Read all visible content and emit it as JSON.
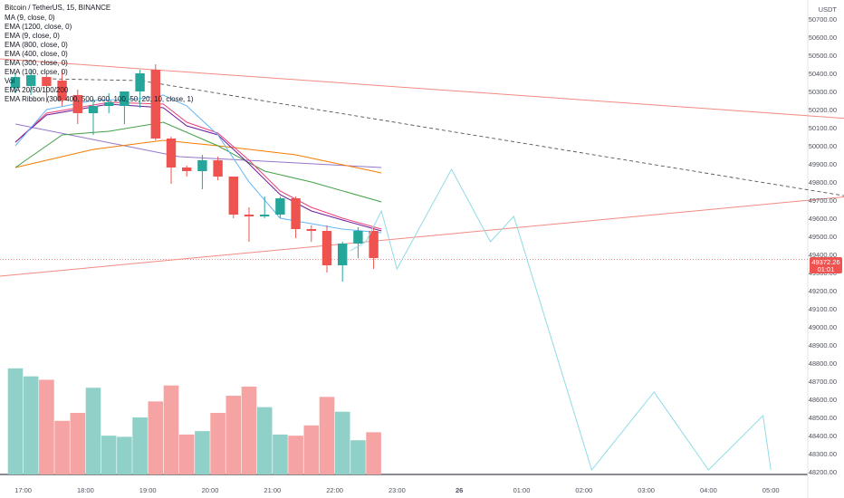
{
  "header": {
    "symbol": "Bitcoin / TetherUS, 15, BINANCE",
    "currency": "USDT"
  },
  "indicators": [
    "MA (9, close, 0)",
    "EMA (1200, close, 0)",
    "EMA (9, close, 0)",
    "EMA (800, close, 0)",
    "EMA (400, close, 0)",
    "EMA (300, close, 0)",
    "EMA (100, close, 0)",
    "Vol",
    "EMA 20/50/100/200",
    "EMA Ribbon (300, 400, 500, 600, 100, 50, 20, 10, close, 1)"
  ],
  "price_tag": {
    "price": "49372.26",
    "countdown": "01:01",
    "color": "#ef5350"
  },
  "colors": {
    "up": "#26a69a",
    "down": "#ef5350",
    "vol_up": "#8fd1c9",
    "vol_down": "#f6a4a3",
    "trend": "#f28b82",
    "projection": "#8fdbe6",
    "dashed": "#555555"
  },
  "chart_data": {
    "type": "candlestick",
    "title": "Bitcoin / TetherUS, 15, BINANCE",
    "ylim": [
      48200,
      50800
    ],
    "y_ticks": [
      48200,
      48300,
      48400,
      48500,
      48600,
      48700,
      48800,
      48900,
      49000,
      49100,
      49200,
      49300,
      49400,
      49500,
      49600,
      49700,
      49800,
      49900,
      50000,
      50100,
      50200,
      50300,
      50400,
      50500,
      50600,
      50700
    ],
    "x_ticks": [
      {
        "label": "17:00",
        "t": 0.5
      },
      {
        "label": "18:00",
        "t": 4.5
      },
      {
        "label": "19:00",
        "t": 8.5
      },
      {
        "label": "20:00",
        "t": 12.5
      },
      {
        "label": "21:00",
        "t": 16.5
      },
      {
        "label": "22:00",
        "t": 20.5
      },
      {
        "label": "23:00",
        "t": 24.5
      },
      {
        "label": "26",
        "t": 28.5
      },
      {
        "label": "01:00",
        "t": 32.5
      },
      {
        "label": "02:00",
        "t": 36.5
      },
      {
        "label": "03:00",
        "t": 40.5
      },
      {
        "label": "04:00",
        "t": 44.5
      },
      {
        "label": "05:00",
        "t": 48.5
      }
    ],
    "candles": [
      {
        "o": 50320,
        "h": 50400,
        "l": 50290,
        "c": 50380
      },
      {
        "o": 50330,
        "h": 50420,
        "l": 50280,
        "c": 50390
      },
      {
        "o": 50380,
        "h": 50400,
        "l": 50240,
        "c": 50330
      },
      {
        "o": 50360,
        "h": 50420,
        "l": 50220,
        "c": 50250
      },
      {
        "o": 50280,
        "h": 50310,
        "l": 50120,
        "c": 50180
      },
      {
        "o": 50180,
        "h": 50260,
        "l": 50060,
        "c": 50220
      },
      {
        "o": 50220,
        "h": 50290,
        "l": 50180,
        "c": 50240
      },
      {
        "o": 50220,
        "h": 50300,
        "l": 50120,
        "c": 50300
      },
      {
        "o": 50300,
        "h": 50420,
        "l": 50210,
        "c": 50400
      },
      {
        "o": 50420,
        "h": 50450,
        "l": 50030,
        "c": 50040
      },
      {
        "o": 50040,
        "h": 50050,
        "l": 49790,
        "c": 49880
      },
      {
        "o": 49880,
        "h": 49890,
        "l": 49830,
        "c": 49860
      },
      {
        "o": 49860,
        "h": 49950,
        "l": 49760,
        "c": 49920
      },
      {
        "o": 49920,
        "h": 49940,
        "l": 49810,
        "c": 49830
      },
      {
        "o": 49830,
        "h": 49830,
        "l": 49600,
        "c": 49620
      },
      {
        "o": 49620,
        "h": 49660,
        "l": 49470,
        "c": 49610
      },
      {
        "o": 49610,
        "h": 49720,
        "l": 49600,
        "c": 49620
      },
      {
        "o": 49620,
        "h": 49720,
        "l": 49600,
        "c": 49710
      },
      {
        "o": 49710,
        "h": 49720,
        "l": 49490,
        "c": 49540
      },
      {
        "o": 49540,
        "h": 49560,
        "l": 49470,
        "c": 49530
      },
      {
        "o": 49530,
        "h": 49560,
        "l": 49300,
        "c": 49340
      },
      {
        "o": 49340,
        "h": 49470,
        "l": 49250,
        "c": 49460
      },
      {
        "o": 49460,
        "h": 49550,
        "l": 49380,
        "c": 49530
      },
      {
        "o": 49530,
        "h": 49550,
        "l": 49320,
        "c": 49380
      }
    ],
    "volume": [
      0.93,
      0.86,
      0.83,
      0.47,
      0.54,
      0.76,
      0.34,
      0.33,
      0.5,
      0.64,
      0.78,
      0.35,
      0.38,
      0.54,
      0.69,
      0.77,
      0.59,
      0.35,
      0.34,
      0.43,
      0.68,
      0.55,
      0.3,
      0.37
    ],
    "ema_lines": [
      {
        "color": "#9575cd",
        "points": [
          [
            0,
            50120
          ],
          [
            10.5,
            49940
          ],
          [
            23.5,
            49880
          ]
        ]
      },
      {
        "color": "#f57c00",
        "points": [
          [
            0,
            49880
          ],
          [
            5,
            49980
          ],
          [
            9.5,
            50030
          ],
          [
            13,
            50000
          ],
          [
            18,
            49950
          ],
          [
            23.5,
            49850
          ]
        ]
      },
      {
        "color": "#43a047",
        "points": [
          [
            0,
            49880
          ],
          [
            3,
            50060
          ],
          [
            6,
            50080
          ],
          [
            9.5,
            50130
          ],
          [
            13,
            50000
          ],
          [
            16,
            49860
          ],
          [
            19,
            49800
          ],
          [
            23.5,
            49690
          ]
        ]
      },
      {
        "color": "#ec407a",
        "points": [
          [
            0,
            50020
          ],
          [
            2,
            50180
          ],
          [
            6,
            50240
          ],
          [
            9.5,
            50230
          ],
          [
            11,
            50130
          ],
          [
            13,
            50070
          ],
          [
            15,
            49920
          ],
          [
            17,
            49750
          ],
          [
            19,
            49660
          ],
          [
            21,
            49600
          ],
          [
            23.5,
            49540
          ]
        ]
      },
      {
        "color": "#6a1b9a",
        "points": [
          [
            0,
            50020
          ],
          [
            2,
            50170
          ],
          [
            6,
            50230
          ],
          [
            9.5,
            50210
          ],
          [
            11,
            50110
          ],
          [
            13,
            50060
          ],
          [
            15,
            49900
          ],
          [
            17,
            49730
          ],
          [
            19,
            49640
          ],
          [
            21,
            49590
          ],
          [
            23.5,
            49530
          ]
        ]
      },
      {
        "color": "#64b5f6",
        "points": [
          [
            0,
            50000
          ],
          [
            2,
            50200
          ],
          [
            5,
            50250
          ],
          [
            8,
            50260
          ],
          [
            9.5,
            50280
          ],
          [
            11,
            50220
          ],
          [
            13,
            50060
          ],
          [
            15,
            49800
          ],
          [
            17,
            49600
          ],
          [
            19,
            49570
          ],
          [
            21,
            49540
          ],
          [
            23.5,
            49520
          ]
        ]
      }
    ],
    "trend_upper": [
      [
        -1,
        50480
      ],
      [
        53.5,
        50150
      ]
    ],
    "trend_lower": [
      [
        -1,
        49280
      ],
      [
        53.5,
        49720
      ]
    ],
    "dashed_projection": [
      [
        2,
        50370
      ],
      [
        8,
        50360
      ],
      [
        53.5,
        49720
      ]
    ],
    "projection_path": [
      [
        21.5,
        49420
      ],
      [
        22.5,
        49470
      ],
      [
        23.5,
        49640
      ],
      [
        24.5,
        49320
      ],
      [
        28,
        49870
      ],
      [
        30.5,
        49470
      ],
      [
        32,
        49610
      ],
      [
        37,
        48210
      ],
      [
        41,
        48640
      ],
      [
        44.5,
        48210
      ],
      [
        48,
        48510
      ],
      [
        48.5,
        48210
      ]
    ]
  }
}
